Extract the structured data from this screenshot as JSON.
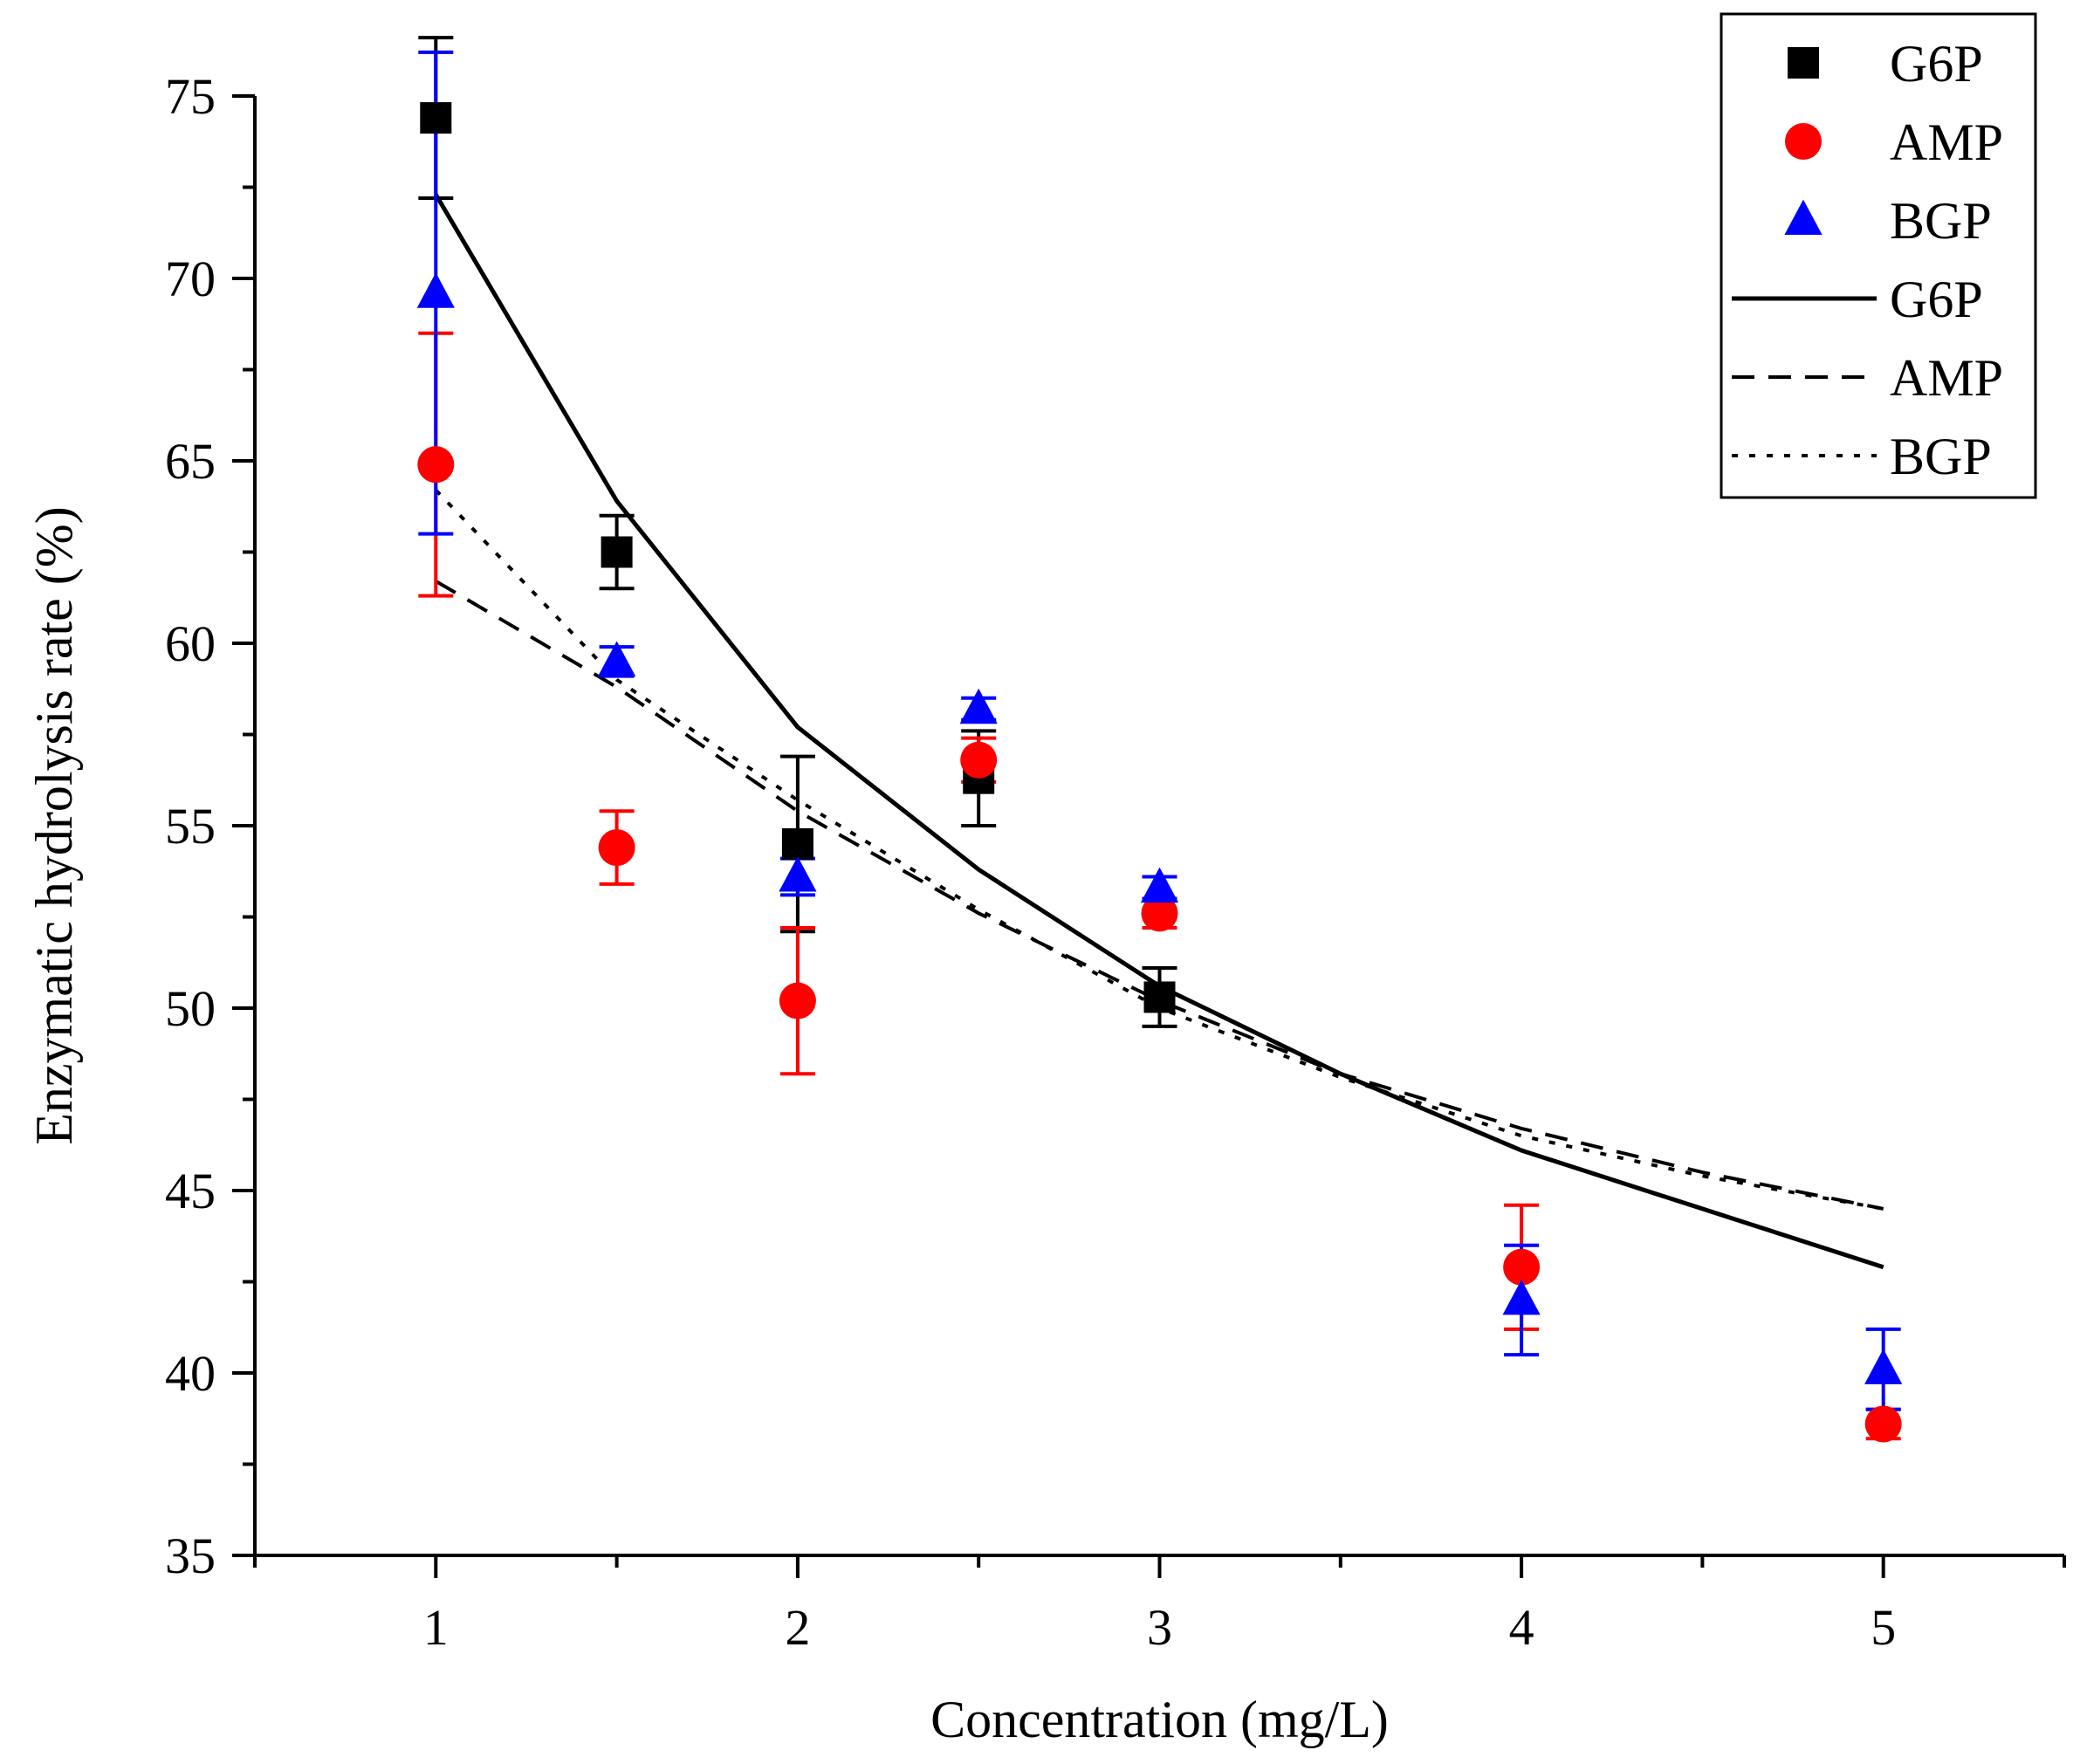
{
  "chart_data": {
    "type": "scatter",
    "title": "",
    "xlabel": "Concentration (mg/L)",
    "ylabel": "Enzymatic hydrolysis rate (%)",
    "xlim": [
      0.5,
      5.5
    ],
    "ylim": [
      35,
      75
    ],
    "x_ticks": [
      1,
      2,
      3,
      4,
      5
    ],
    "x_tick_labels": [
      "1",
      "2",
      "3",
      "4",
      "5"
    ],
    "y_ticks": [
      35,
      40,
      45,
      50,
      55,
      60,
      65,
      70,
      75
    ],
    "y_tick_labels": [
      "35",
      "40",
      "45",
      "50",
      "55",
      "60",
      "65",
      "70",
      "75"
    ],
    "grid": false,
    "legend_position": "top-right",
    "series": [
      {
        "name": "G6P",
        "kind": "points",
        "marker": "square",
        "color": "#000000",
        "x": [
          1,
          1.5,
          2,
          2.5,
          3
        ],
        "y": [
          74.4,
          62.5,
          54.5,
          56.3,
          50.3
        ],
        "err": [
          2.2,
          1.0,
          2.4,
          1.3,
          0.8
        ]
      },
      {
        "name": "AMP",
        "kind": "points",
        "marker": "circle",
        "color": "#ff0000",
        "x": [
          1,
          1.5,
          2,
          2.5,
          3,
          4,
          5
        ],
        "y": [
          64.9,
          54.4,
          50.2,
          56.8,
          52.6,
          42.9,
          38.6
        ],
        "err": [
          3.6,
          1.0,
          2.0,
          0.6,
          0.4,
          1.7,
          0.4
        ]
      },
      {
        "name": "BGP",
        "kind": "points",
        "marker": "triangle",
        "color": "#0000ff",
        "x": [
          1,
          1.5,
          2,
          2.5,
          3,
          4,
          5
        ],
        "y": [
          69.6,
          59.5,
          53.6,
          58.2,
          53.3,
          42.0,
          40.1
        ],
        "err": [
          6.6,
          0.4,
          0.5,
          0.3,
          0.3,
          1.5,
          1.1
        ]
      },
      {
        "name": "G6P",
        "kind": "fit",
        "style": "solid",
        "color": "#000000",
        "x": [
          1,
          1.5,
          2,
          2.5,
          3,
          3.5,
          4,
          4.5,
          5
        ],
        "y": [
          72.3,
          63.9,
          57.7,
          53.8,
          50.6,
          48.2,
          46.1,
          44.5,
          42.9
        ]
      },
      {
        "name": "AMP",
        "kind": "fit",
        "style": "dashed",
        "color": "#000000",
        "x": [
          1,
          1.5,
          2,
          2.5,
          3,
          3.5,
          4,
          4.5,
          5
        ],
        "y": [
          61.7,
          58.8,
          55.4,
          52.6,
          50.2,
          48.2,
          46.7,
          45.5,
          44.5
        ]
      },
      {
        "name": "BGP",
        "kind": "fit",
        "style": "dotted",
        "color": "#000000",
        "x": [
          1,
          1.5,
          2,
          2.5,
          3,
          3.5,
          4,
          4.5,
          5
        ],
        "y": [
          64.2,
          59.0,
          55.7,
          52.7,
          50.0,
          48.1,
          46.5,
          45.4,
          44.5
        ]
      }
    ]
  }
}
